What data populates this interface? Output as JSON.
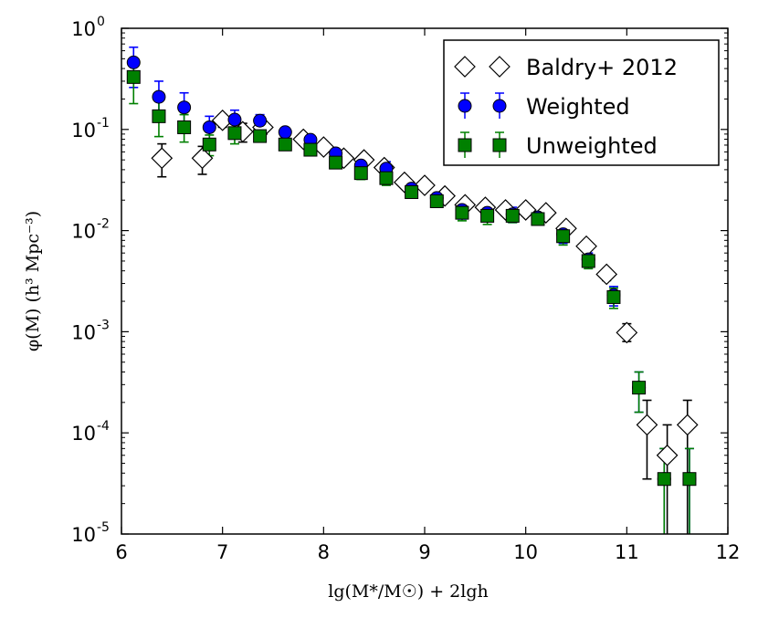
{
  "chart_data": {
    "type": "scatter",
    "title": "",
    "xlabel": "lg(M*/M☉) + 2lgh",
    "ylabel": "φ(M) (h³ Mpc⁻³)",
    "xlim": [
      6,
      12
    ],
    "ylim_log10": [
      -5,
      0
    ],
    "x_ticks": [
      "6",
      "7",
      "8",
      "9",
      "10",
      "11",
      "12"
    ],
    "y_ticks": [
      {
        "base": "10",
        "exp": "0"
      },
      {
        "base": "10",
        "exp": "-1"
      },
      {
        "base": "10",
        "exp": "-2"
      },
      {
        "base": "10",
        "exp": "-3"
      },
      {
        "base": "10",
        "exp": "-4"
      },
      {
        "base": "10",
        "exp": "-5"
      }
    ],
    "legend_position": "top-right",
    "series": [
      {
        "name": "Baldry+ 2012",
        "marker": "diamond",
        "color": "#ffffff",
        "edge": "#000000",
        "errcolor": "#000000",
        "points": [
          {
            "x": 6.4,
            "y": 0.052,
            "lo": 0.034,
            "hi": 0.072
          },
          {
            "x": 6.8,
            "y": 0.052,
            "lo": 0.036,
            "hi": 0.068
          },
          {
            "x": 7.0,
            "y": 0.123,
            "lo": 0.105,
            "hi": 0.14
          },
          {
            "x": 7.2,
            "y": 0.095,
            "lo": 0.075,
            "hi": 0.115
          },
          {
            "x": 7.4,
            "y": 0.105,
            "lo": 0.09,
            "hi": 0.12
          },
          {
            "x": 7.8,
            "y": 0.08,
            "lo": 0.07,
            "hi": 0.09
          },
          {
            "x": 8.0,
            "y": 0.067,
            "lo": 0.06,
            "hi": 0.075
          },
          {
            "x": 8.2,
            "y": 0.052,
            "lo": 0.046,
            "hi": 0.058
          },
          {
            "x": 8.4,
            "y": 0.05,
            "lo": 0.045,
            "hi": 0.055
          },
          {
            "x": 8.6,
            "y": 0.042,
            "lo": 0.038,
            "hi": 0.046
          },
          {
            "x": 8.8,
            "y": 0.03,
            "lo": 0.027,
            "hi": 0.033
          },
          {
            "x": 9.0,
            "y": 0.028,
            "lo": 0.025,
            "hi": 0.031
          },
          {
            "x": 9.2,
            "y": 0.022,
            "lo": 0.02,
            "hi": 0.024
          },
          {
            "x": 9.4,
            "y": 0.018,
            "lo": 0.016,
            "hi": 0.02
          },
          {
            "x": 9.6,
            "y": 0.017,
            "lo": 0.015,
            "hi": 0.019
          },
          {
            "x": 9.8,
            "y": 0.016,
            "lo": 0.014,
            "hi": 0.018
          },
          {
            "x": 10.0,
            "y": 0.016,
            "lo": 0.014,
            "hi": 0.018
          },
          {
            "x": 10.2,
            "y": 0.015,
            "lo": 0.013,
            "hi": 0.017
          },
          {
            "x": 10.4,
            "y": 0.0105,
            "lo": 0.0095,
            "hi": 0.0115
          },
          {
            "x": 10.6,
            "y": 0.007,
            "lo": 0.0063,
            "hi": 0.0077
          },
          {
            "x": 10.8,
            "y": 0.0037,
            "lo": 0.0032,
            "hi": 0.0042
          },
          {
            "x": 11.0,
            "y": 0.00098,
            "lo": 0.0008,
            "hi": 0.0012
          },
          {
            "x": 11.2,
            "y": 0.00012,
            "lo": 3.5e-05,
            "hi": 0.00021
          },
          {
            "x": 11.4,
            "y": 6e-05,
            "lo": 1e-05,
            "hi": 0.00012
          },
          {
            "x": 11.6,
            "y": 0.00012,
            "lo": 1e-05,
            "hi": 0.00021
          }
        ]
      },
      {
        "name": "Weighted",
        "marker": "circle",
        "color": "#0000ff",
        "edge": "#000000",
        "errcolor": "#0000ff",
        "points": [
          {
            "x": 6.12,
            "y": 0.46,
            "lo": 0.26,
            "hi": 0.65
          },
          {
            "x": 6.37,
            "y": 0.21,
            "lo": 0.13,
            "hi": 0.3
          },
          {
            "x": 6.62,
            "y": 0.165,
            "lo": 0.11,
            "hi": 0.23
          },
          {
            "x": 6.87,
            "y": 0.105,
            "lo": 0.075,
            "hi": 0.135
          },
          {
            "x": 7.12,
            "y": 0.125,
            "lo": 0.1,
            "hi": 0.155
          },
          {
            "x": 7.37,
            "y": 0.122,
            "lo": 0.105,
            "hi": 0.14
          },
          {
            "x": 7.62,
            "y": 0.094,
            "lo": 0.084,
            "hi": 0.104
          },
          {
            "x": 7.87,
            "y": 0.079,
            "lo": 0.072,
            "hi": 0.086
          },
          {
            "x": 8.12,
            "y": 0.058,
            "lo": 0.053,
            "hi": 0.063
          },
          {
            "x": 8.37,
            "y": 0.044,
            "lo": 0.037,
            "hi": 0.052
          },
          {
            "x": 8.62,
            "y": 0.041,
            "lo": 0.034,
            "hi": 0.048
          },
          {
            "x": 8.87,
            "y": 0.026,
            "lo": 0.023,
            "hi": 0.029
          },
          {
            "x": 9.12,
            "y": 0.021,
            "lo": 0.019,
            "hi": 0.023
          },
          {
            "x": 9.37,
            "y": 0.016,
            "lo": 0.013,
            "hi": 0.019
          },
          {
            "x": 9.62,
            "y": 0.015,
            "lo": 0.013,
            "hi": 0.017
          },
          {
            "x": 9.87,
            "y": 0.0145,
            "lo": 0.012,
            "hi": 0.017
          },
          {
            "x": 10.12,
            "y": 0.0135,
            "lo": 0.012,
            "hi": 0.015
          },
          {
            "x": 10.37,
            "y": 0.0092,
            "lo": 0.0075,
            "hi": 0.011
          },
          {
            "x": 10.62,
            "y": 0.0052,
            "lo": 0.0044,
            "hi": 0.006
          },
          {
            "x": 10.87,
            "y": 0.0023,
            "lo": 0.0018,
            "hi": 0.0028
          },
          {
            "x": 11.12,
            "y": 0.00028,
            "lo": 0.00016,
            "hi": 0.0004
          },
          {
            "x": 11.37,
            "y": 3.5e-05,
            "lo": 1e-05,
            "hi": 7e-05
          },
          {
            "x": 11.62,
            "y": 3.5e-05,
            "lo": 1e-05,
            "hi": 7e-05
          }
        ]
      },
      {
        "name": "Unweighted",
        "marker": "square",
        "color": "#008000",
        "edge": "#000000",
        "errcolor": "#008000",
        "points": [
          {
            "x": 6.12,
            "y": 0.33,
            "lo": 0.18,
            "hi": 0.48
          },
          {
            "x": 6.37,
            "y": 0.135,
            "lo": 0.085,
            "hi": 0.19
          },
          {
            "x": 6.62,
            "y": 0.105,
            "lo": 0.075,
            "hi": 0.14
          },
          {
            "x": 6.87,
            "y": 0.071,
            "lo": 0.055,
            "hi": 0.088
          },
          {
            "x": 7.12,
            "y": 0.092,
            "lo": 0.072,
            "hi": 0.115
          },
          {
            "x": 7.37,
            "y": 0.086,
            "lo": 0.075,
            "hi": 0.098
          },
          {
            "x": 7.62,
            "y": 0.071,
            "lo": 0.064,
            "hi": 0.078
          },
          {
            "x": 7.87,
            "y": 0.063,
            "lo": 0.057,
            "hi": 0.069
          },
          {
            "x": 8.12,
            "y": 0.047,
            "lo": 0.043,
            "hi": 0.051
          },
          {
            "x": 8.37,
            "y": 0.037,
            "lo": 0.032,
            "hi": 0.042
          },
          {
            "x": 8.62,
            "y": 0.033,
            "lo": 0.028,
            "hi": 0.038
          },
          {
            "x": 8.87,
            "y": 0.024,
            "lo": 0.021,
            "hi": 0.027
          },
          {
            "x": 9.12,
            "y": 0.0195,
            "lo": 0.0175,
            "hi": 0.0215
          },
          {
            "x": 9.37,
            "y": 0.015,
            "lo": 0.0125,
            "hi": 0.0175
          },
          {
            "x": 9.62,
            "y": 0.014,
            "lo": 0.0115,
            "hi": 0.0165
          },
          {
            "x": 9.87,
            "y": 0.014,
            "lo": 0.012,
            "hi": 0.016
          },
          {
            "x": 10.12,
            "y": 0.013,
            "lo": 0.0115,
            "hi": 0.0145
          },
          {
            "x": 10.37,
            "y": 0.0088,
            "lo": 0.0072,
            "hi": 0.0105
          },
          {
            "x": 10.62,
            "y": 0.005,
            "lo": 0.0042,
            "hi": 0.0058
          },
          {
            "x": 10.87,
            "y": 0.0022,
            "lo": 0.0017,
            "hi": 0.0027
          },
          {
            "x": 11.12,
            "y": 0.00028,
            "lo": 0.00016,
            "hi": 0.0004
          },
          {
            "x": 11.37,
            "y": 3.5e-05,
            "lo": 1e-05,
            "hi": 7e-05
          },
          {
            "x": 11.62,
            "y": 3.5e-05,
            "lo": 1e-05,
            "hi": 7e-05
          }
        ]
      }
    ]
  }
}
